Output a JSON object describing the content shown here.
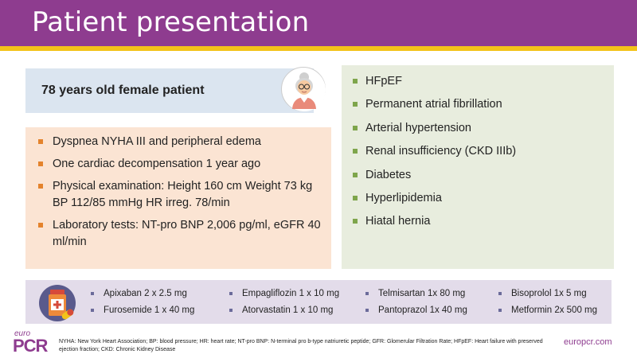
{
  "header": {
    "title": "Patient presentation"
  },
  "patient": {
    "label": "78 years old female patient"
  },
  "symptoms": [
    "Dyspnea NYHA III and peripheral edema",
    "One cardiac decompensation 1 year ago",
    "Physical examination: Height 160 cm Weight 73 kg BP 112/85 mmHg HR irreg. 78/min",
    "Laboratory tests: NT-pro BNP 2,006 pg/ml, eGFR 40 ml/min"
  ],
  "history": [
    "HFpEF",
    "Permanent atrial fibrillation",
    "Arterial hypertension",
    "Renal insufficiency (CKD IIIb)",
    "Diabetes",
    "Hyperlipidemia",
    "Hiatal hernia"
  ],
  "medications": [
    [
      "Apixaban 2 x 2.5 mg",
      "Furosemide 1 x 40 mg"
    ],
    [
      "Empagliflozin 1 x 10 mg",
      "Atorvastatin 1 x 10 mg"
    ],
    [
      "Telmisartan 1x 80 mg",
      "Pantoprazol 1x 40 mg"
    ],
    [
      "Bisoprolol 1x 5 mg",
      "Metformin 2x 500 mg"
    ]
  ],
  "footer": {
    "logo_small": "euro",
    "logo_main": "PCR",
    "footnote": "NYHA: New York Heart Association; BP: blood pressure; HR: heart rate; NT-pro BNP: N-terminal pro b-type natriuretic peptide; GFR: Glomerular Filtration Rate; HFpEF: Heart failure with preserved ejection fraction; CKD: Chronic Kidney Disease",
    "site": "europcr.com"
  },
  "colors": {
    "brand": "#8e3c8f",
    "accent": "#f3c319",
    "symptom_bullet": "#e4832d",
    "history_bullet": "#7ea54b"
  },
  "icons": {
    "avatar": "elderly-woman-icon",
    "medication": "medication-bottle-icon"
  }
}
